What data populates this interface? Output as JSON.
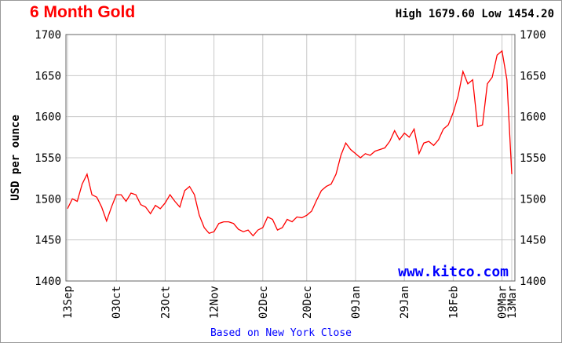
{
  "chart_data": {
    "type": "line",
    "title": "6 Month Gold",
    "annotation": "High 1679.60 Low 1454.20",
    "ylabel": "USD per ounce",
    "watermark": "www.kitco.com",
    "footnote": "Based on New York Close",
    "color": "#ff0000",
    "grid": true,
    "ylim": [
      1400,
      1700
    ],
    "yticks": [
      1400,
      1450,
      1500,
      1550,
      1600,
      1650,
      1700
    ],
    "categories": [
      "13Sep",
      null,
      null,
      null,
      null,
      null,
      null,
      null,
      null,
      null,
      "03Oct",
      null,
      null,
      null,
      null,
      null,
      null,
      null,
      null,
      null,
      "23Oct",
      null,
      null,
      null,
      null,
      null,
      null,
      null,
      null,
      null,
      "12Nov",
      null,
      null,
      null,
      null,
      null,
      null,
      null,
      null,
      null,
      "02Dec",
      null,
      null,
      null,
      null,
      null,
      null,
      null,
      null,
      "20Dec",
      null,
      null,
      null,
      null,
      null,
      null,
      null,
      null,
      null,
      "09Jan",
      null,
      null,
      null,
      null,
      null,
      null,
      null,
      null,
      null,
      "29Jan",
      null,
      null,
      null,
      null,
      null,
      null,
      null,
      null,
      null,
      "18Feb",
      null,
      null,
      null,
      null,
      null,
      null,
      null,
      null,
      null,
      "09Mar",
      null,
      "13Mar"
    ],
    "values": [
      1488,
      1500,
      1497,
      1518,
      1530,
      1505,
      1502,
      1490,
      1473,
      1490,
      1505,
      1505,
      1497,
      1507,
      1505,
      1493,
      1490,
      1482,
      1492,
      1488,
      1495,
      1505,
      1497,
      1490,
      1510,
      1515,
      1505,
      1480,
      1465,
      1458,
      1460,
      1470,
      1472,
      1472,
      1470,
      1463,
      1460,
      1462,
      1455,
      1462,
      1465,
      1478,
      1475,
      1462,
      1465,
      1475,
      1472,
      1478,
      1477,
      1480,
      1485,
      1498,
      1510,
      1515,
      1518,
      1530,
      1553,
      1568,
      1560,
      1555,
      1550,
      1555,
      1553,
      1558,
      1560,
      1562,
      1570,
      1583,
      1572,
      1580,
      1575,
      1585,
      1555,
      1568,
      1570,
      1565,
      1572,
      1585,
      1590,
      1605,
      1625,
      1655,
      1640,
      1645,
      1588,
      1590,
      1640,
      1648,
      1675,
      1680,
      1645,
      1530
    ]
  }
}
